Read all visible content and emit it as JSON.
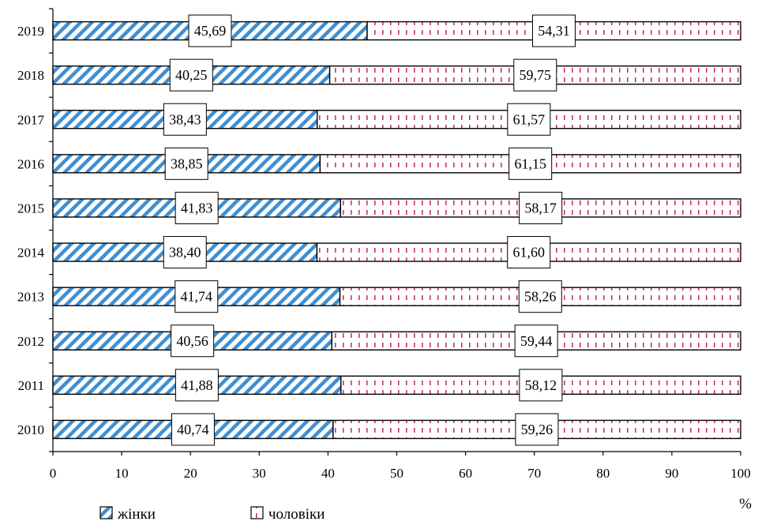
{
  "chart_data": {
    "type": "bar",
    "orientation": "horizontal",
    "stacked": true,
    "categories": [
      "2019",
      "2018",
      "2017",
      "2016",
      "2015",
      "2014",
      "2013",
      "2012",
      "2011",
      "2010"
    ],
    "series": [
      {
        "name": "жінки",
        "values": [
          45.69,
          40.25,
          38.43,
          38.85,
          41.83,
          38.4,
          41.74,
          40.56,
          41.88,
          40.74
        ],
        "labels": [
          "45,69",
          "40,25",
          "38,43",
          "38,85",
          "41,83",
          "38,40",
          "41,74",
          "40,56",
          "41,88",
          "40,74"
        ],
        "pattern": "diagonal-hatch",
        "color": "#3f8fd2"
      },
      {
        "name": "чоловіки",
        "values": [
          54.31,
          59.75,
          61.57,
          61.15,
          58.17,
          61.6,
          58.26,
          59.44,
          58.12,
          59.26
        ],
        "labels": [
          "54,31",
          "59,75",
          "61,57",
          "61,15",
          "58,17",
          "61,60",
          "58,26",
          "59,44",
          "58,12",
          "59,26"
        ],
        "pattern": "dashed-dots",
        "color": "#d0306c"
      }
    ],
    "xlim": [
      0,
      100
    ],
    "xticks": [
      "0",
      "10",
      "20",
      "30",
      "40",
      "50",
      "60",
      "70",
      "80",
      "90",
      "100"
    ],
    "xunit": "%",
    "legend_position": "bottom-left",
    "grid": false
  }
}
